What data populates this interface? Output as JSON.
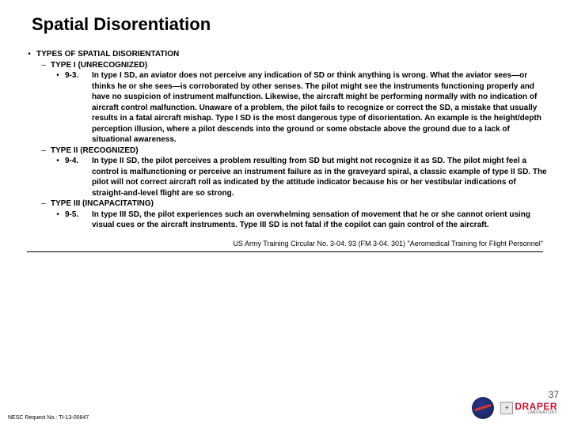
{
  "title": "Spatial Disorentiation",
  "heading": "TYPES OF SPATIAL DISORIENTATION",
  "type1": {
    "label": "TYPE I (UNRECOGNIZED)",
    "num": "9-3.",
    "text": "In type I SD, an aviator does not perceive any indication of SD or think anything is wrong. What the aviator sees—or thinks he or she sees—is corroborated by other senses. The pilot might see the instruments functioning properly and have no suspicion of instrument malfunction. Likewise, the aircraft might be performing normally with no indication of aircraft control malfunction. Unaware of a problem, the pilot fails to recognize or correct the SD, a mistake that usually results in a fatal aircraft mishap. Type I SD is the most dangerous type of disorientation. An example is the height/depth perception illusion, where a pilot descends into the ground or some obstacle above the ground due to a lack of situational awareness."
  },
  "type2": {
    "label": "TYPE II (RECOGNIZED)",
    "num": "9-4.",
    "text": "In type II SD, the pilot perceives a problem resulting from SD but might not recognize it as SD. The pilot might feel a control is malfunctioning or perceive an instrument failure as in the graveyard spiral, a classic example of type II SD. The pilot will not correct aircraft roll as indicated by the attitude indicator because his or her vestibular indications of straight-and-level flight are so strong."
  },
  "type3": {
    "label": "TYPE III (INCAPACITATING)",
    "num": "9-5.",
    "text": "In type III SD, the pilot experiences such an overwhelming sensation of movement that he or she cannot orient using visual cues or the aircraft instruments. Type III SD is not fatal if the copilot can gain control of the aircraft."
  },
  "citation": "US Army Training Circular No. 3-04. 93 (FM 3-04. 301) \"Aeromedical Training for Flight Personnel\"",
  "footer_left": "NESC Request No.: TI-13-00847",
  "page_number": "37",
  "draper": "DRAPER",
  "draper_sub": "LABORATORY"
}
